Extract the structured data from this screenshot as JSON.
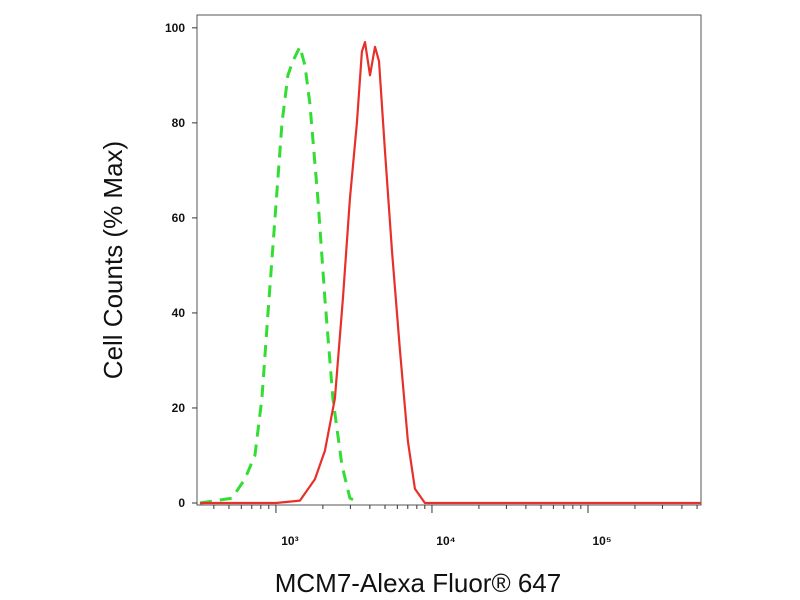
{
  "chart_data": {
    "type": "line",
    "ylabel": "Cell Counts (% Max)",
    "xlabel": "MCM7-Alexa Fluor® 647",
    "log_x": true,
    "xlim": [
      312,
      530000
    ],
    "ylim": [
      0,
      102.7
    ],
    "xticks": [
      {
        "value": 1000,
        "label": "10³"
      },
      {
        "value": 10000,
        "label": "10⁴"
      },
      {
        "value": 100000,
        "label": "10⁵"
      }
    ],
    "xminorticks": [
      400,
      500,
      600,
      700,
      800,
      900,
      2000,
      3000,
      4000,
      5000,
      6000,
      7000,
      8000,
      9000,
      20000,
      30000,
      40000,
      50000,
      60000,
      70000,
      80000,
      90000,
      200000,
      300000,
      400000,
      500000
    ],
    "yticks": [
      0,
      20,
      40,
      60,
      80,
      100
    ],
    "series": [
      {
        "color": "#33dd33",
        "dashed": true,
        "x": [
          326,
          522,
          632,
          733,
          813,
          889,
          986,
          1093,
          1194,
          1285,
          1425,
          1535,
          1652,
          1859,
          2061,
          2319,
          2648,
          2978,
          3453
        ],
        "values": [
          0,
          1,
          5,
          10,
          22,
          40,
          60,
          80,
          90,
          93,
          96,
          92,
          84,
          64,
          43,
          22,
          8,
          1,
          0
        ]
      },
      {
        "color": "#e8302a",
        "dashed": false,
        "x": [
          326,
          1000,
          1425,
          1778,
          2061,
          2389,
          2687,
          2978,
          3304,
          3556,
          3723,
          4009,
          4313,
          4575,
          4999,
          5544,
          6238,
          7015,
          7776,
          9016,
          530000
        ],
        "values": [
          0,
          0,
          0.5,
          5,
          11,
          22,
          43,
          64,
          80,
          95,
          97,
          90,
          96,
          93,
          74,
          53,
          32,
          13,
          3,
          0,
          0
        ]
      }
    ]
  }
}
